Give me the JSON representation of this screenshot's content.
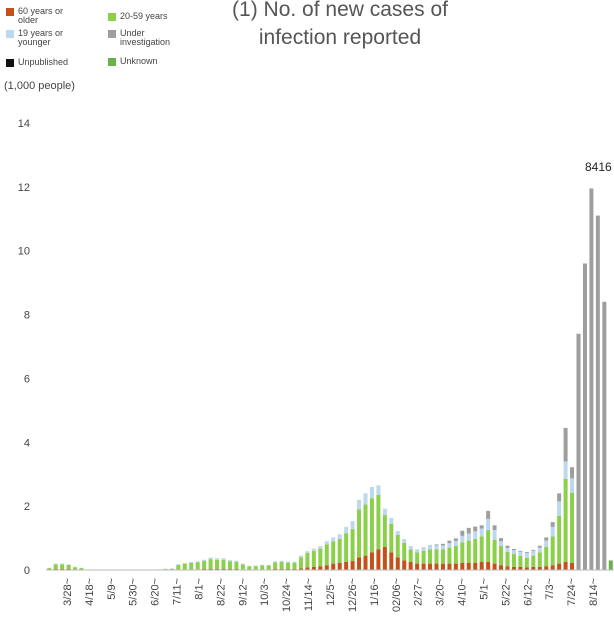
{
  "header": {
    "title_line1": "(1) No. of new cases of",
    "title_line2": "infection reported",
    "unit": "(1,000 people)"
  },
  "legend": [
    {
      "label": "60 years or older",
      "color": "#c5501a"
    },
    {
      "label": "20-59 years",
      "color": "#8ccf4a"
    },
    {
      "label": "19 years or younger",
      "color": "#bdd7ee"
    },
    {
      "label": "Under investigation",
      "color": "#9e9e9e"
    },
    {
      "label": "Unpublished",
      "color": "#111111"
    },
    {
      "label": "Unknown",
      "color": "#6ab04c"
    }
  ],
  "chart_data": {
    "type": "bar",
    "stacked": true,
    "ylim": [
      0,
      14
    ],
    "yticks": [
      "0",
      "2",
      "4",
      "6",
      "8",
      "10",
      "12",
      "14"
    ],
    "xticklabels": [
      "3/28~",
      "4/18~",
      "5/9~",
      "5/30~",
      "6/20~",
      "7/11~",
      "8/1~",
      "8/22~",
      "9/12~",
      "10/3~",
      "10/24~",
      "11/14~",
      "12/5~",
      "12/26~",
      "1/16~",
      "02/06~",
      "2/27~",
      "3/20~",
      "4/10~",
      "5/1~",
      "5/22~",
      "6/12~",
      "7/3~",
      "7/24~",
      "8/14~"
    ],
    "annotation": "8416",
    "series_order": [
      "60 years or older",
      "20-59 years",
      "19 years or younger",
      "Under investigation",
      "Unpublished",
      "Unknown"
    ],
    "series": [
      {
        "name": "60 years or older",
        "color": "#c5501a",
        "values": [
          0.01,
          0.03,
          0.03,
          0.03,
          0.01,
          0.01,
          0,
          0,
          0,
          0,
          0,
          0,
          0,
          0,
          0,
          0,
          0,
          0,
          0,
          0,
          0.01,
          0.01,
          0.02,
          0.02,
          0.03,
          0.04,
          0.04,
          0.04,
          0.03,
          0.03,
          0.02,
          0.01,
          0.02,
          0.02,
          0.02,
          0.04,
          0.03,
          0.03,
          0.03,
          0.05,
          0.08,
          0.1,
          0.12,
          0.15,
          0.2,
          0.22,
          0.25,
          0.28,
          0.4,
          0.45,
          0.55,
          0.65,
          0.72,
          0.55,
          0.4,
          0.3,
          0.25,
          0.2,
          0.2,
          0.2,
          0.2,
          0.2,
          0.2,
          0.2,
          0.22,
          0.22,
          0.22,
          0.25,
          0.25,
          0.2,
          0.15,
          0.12,
          0.1,
          0.1,
          0.08,
          0.1,
          0.1,
          0.12,
          0.15,
          0.2,
          0.25,
          0.22,
          0,
          0,
          0,
          0,
          0,
          0
        ]
      },
      {
        "name": "20-59 years",
        "color": "#8ccf4a",
        "values": [
          0.05,
          0.15,
          0.15,
          0.13,
          0.08,
          0.05,
          0,
          0,
          0,
          0,
          0,
          0,
          0,
          0,
          0,
          0,
          0,
          0.02,
          0.03,
          0.04,
          0.15,
          0.18,
          0.2,
          0.22,
          0.25,
          0.3,
          0.28,
          0.28,
          0.24,
          0.22,
          0.15,
          0.1,
          0.1,
          0.12,
          0.12,
          0.2,
          0.22,
          0.2,
          0.2,
          0.35,
          0.45,
          0.5,
          0.55,
          0.65,
          0.7,
          0.75,
          0.9,
          1.0,
          1.5,
          1.6,
          1.7,
          1.7,
          1.0,
          0.9,
          0.7,
          0.55,
          0.4,
          0.35,
          0.4,
          0.45,
          0.45,
          0.45,
          0.5,
          0.55,
          0.65,
          0.7,
          0.75,
          0.8,
          1.0,
          0.75,
          0.6,
          0.45,
          0.4,
          0.35,
          0.3,
          0.35,
          0.45,
          0.6,
          0.9,
          1.5,
          2.6,
          2.2,
          0,
          0,
          0,
          0,
          0,
          0
        ]
      },
      {
        "name": "19 years or younger",
        "color": "#bdd7ee",
        "values": [
          0.01,
          0.02,
          0.02,
          0.02,
          0.01,
          0.01,
          0,
          0,
          0,
          0,
          0,
          0,
          0,
          0,
          0,
          0,
          0,
          0,
          0.01,
          0.01,
          0.02,
          0.03,
          0.03,
          0.03,
          0.04,
          0.05,
          0.05,
          0.05,
          0.04,
          0.04,
          0.03,
          0.02,
          0.02,
          0.02,
          0.02,
          0.03,
          0.04,
          0.03,
          0.03,
          0.05,
          0.06,
          0.07,
          0.08,
          0.1,
          0.12,
          0.15,
          0.2,
          0.25,
          0.3,
          0.35,
          0.35,
          0.3,
          0.2,
          0.18,
          0.12,
          0.12,
          0.1,
          0.1,
          0.12,
          0.14,
          0.12,
          0.12,
          0.14,
          0.16,
          0.2,
          0.22,
          0.24,
          0.25,
          0.35,
          0.3,
          0.15,
          0.12,
          0.12,
          0.12,
          0.15,
          0.15,
          0.15,
          0.2,
          0.3,
          0.45,
          0.55,
          0.45,
          0,
          0,
          0,
          0,
          0,
          0
        ]
      },
      {
        "name": "Under investigation",
        "color": "#9e9e9e",
        "values": [
          0,
          0,
          0,
          0,
          0,
          0,
          0,
          0,
          0,
          0,
          0,
          0,
          0,
          0,
          0,
          0,
          0,
          0,
          0,
          0,
          0,
          0,
          0,
          0,
          0,
          0,
          0,
          0,
          0,
          0,
          0,
          0,
          0,
          0,
          0,
          0,
          0,
          0,
          0,
          0,
          0,
          0,
          0,
          0,
          0,
          0,
          0,
          0,
          0,
          0,
          0,
          0,
          0,
          0,
          0,
          0,
          0,
          0,
          0,
          0,
          0.03,
          0.05,
          0.08,
          0.08,
          0.16,
          0.18,
          0.15,
          0.1,
          0.25,
          0.15,
          0.1,
          0.07,
          0.04,
          0.03,
          0.03,
          0.03,
          0.06,
          0.1,
          0.15,
          0.25,
          1.05,
          0.35,
          7.4,
          9.6,
          11.95,
          11.1,
          8.4,
          0
        ]
      },
      {
        "name": "Unpublished",
        "color": "#111111",
        "values": [
          0,
          0,
          0,
          0,
          0,
          0,
          0,
          0,
          0,
          0,
          0,
          0,
          0,
          0,
          0,
          0,
          0,
          0,
          0,
          0,
          0,
          0,
          0,
          0,
          0,
          0,
          0,
          0,
          0,
          0,
          0,
          0,
          0,
          0,
          0,
          0,
          0,
          0,
          0,
          0,
          0,
          0,
          0,
          0,
          0,
          0,
          0,
          0,
          0,
          0,
          0,
          0,
          0,
          0,
          0,
          0,
          0,
          0,
          0,
          0,
          0,
          0,
          0,
          0,
          0,
          0,
          0,
          0,
          0,
          0,
          0,
          0,
          0,
          0,
          0,
          0,
          0,
          0,
          0,
          0,
          0,
          0,
          0,
          0,
          0,
          0,
          0,
          0
        ]
      },
      {
        "name": "Unknown",
        "color": "#6ab04c",
        "values": [
          0,
          0,
          0,
          0,
          0,
          0,
          0,
          0,
          0,
          0,
          0,
          0,
          0,
          0,
          0,
          0,
          0,
          0,
          0,
          0,
          0,
          0,
          0,
          0,
          0,
          0,
          0,
          0,
          0,
          0,
          0,
          0,
          0,
          0,
          0,
          0,
          0,
          0,
          0,
          0,
          0,
          0,
          0,
          0,
          0,
          0,
          0,
          0,
          0,
          0,
          0,
          0,
          0,
          0,
          0,
          0,
          0,
          0,
          0,
          0,
          0,
          0,
          0,
          0,
          0,
          0,
          0,
          0,
          0,
          0,
          0,
          0,
          0,
          0,
          0,
          0,
          0,
          0,
          0,
          0,
          0,
          0,
          0,
          0,
          0,
          0,
          0,
          0.3
        ]
      }
    ]
  }
}
